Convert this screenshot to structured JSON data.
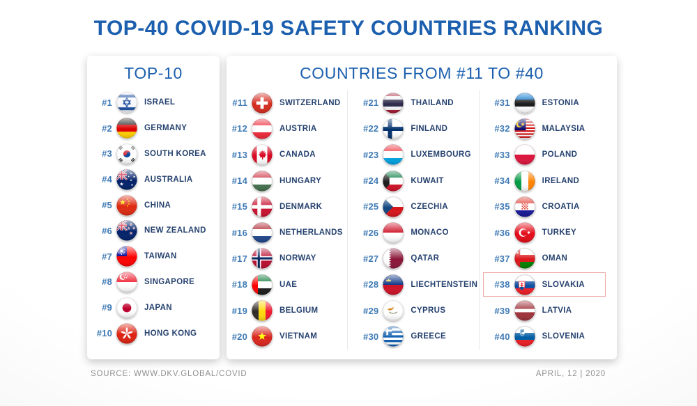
{
  "title": "TOP-40 COVID-19 SAFETY COUNTRIES RANKING",
  "panels": {
    "top10": {
      "heading": "TOP-10",
      "items": [
        {
          "rank": "#1",
          "country": "ISRAEL",
          "flag_icon": "israel-flag-icon"
        },
        {
          "rank": "#2",
          "country": "GERMANY",
          "flag_icon": "germany-flag-icon"
        },
        {
          "rank": "#3",
          "country": "SOUTH KOREA",
          "flag_icon": "south-korea-flag-icon"
        },
        {
          "rank": "#4",
          "country": "AUSTRALIA",
          "flag_icon": "australia-flag-icon"
        },
        {
          "rank": "#5",
          "country": "CHINA",
          "flag_icon": "china-flag-icon"
        },
        {
          "rank": "#6",
          "country": "NEW ZEALAND",
          "flag_icon": "new-zealand-flag-icon"
        },
        {
          "rank": "#7",
          "country": "TAIWAN",
          "flag_icon": "taiwan-flag-icon"
        },
        {
          "rank": "#8",
          "country": "SINGAPORE",
          "flag_icon": "singapore-flag-icon"
        },
        {
          "rank": "#9",
          "country": "JAPAN",
          "flag_icon": "japan-flag-icon"
        },
        {
          "rank": "#10",
          "country": "HONG KONG",
          "flag_icon": "hong-kong-flag-icon"
        }
      ]
    },
    "rest": {
      "heading": "COUNTRIES FROM #11 TO #40",
      "highlighted_rank": "#38",
      "columns": [
        [
          {
            "rank": "#11",
            "country": "SWITZERLAND",
            "flag_icon": "switzerland-flag-icon"
          },
          {
            "rank": "#12",
            "country": "AUSTRIA",
            "flag_icon": "austria-flag-icon"
          },
          {
            "rank": "#13",
            "country": "CANADA",
            "flag_icon": "canada-flag-icon"
          },
          {
            "rank": "#14",
            "country": "HUNGARY",
            "flag_icon": "hungary-flag-icon"
          },
          {
            "rank": "#15",
            "country": "DENMARK",
            "flag_icon": "denmark-flag-icon"
          },
          {
            "rank": "#16",
            "country": "NETHERLANDS",
            "flag_icon": "netherlands-flag-icon"
          },
          {
            "rank": "#17",
            "country": "NORWAY",
            "flag_icon": "norway-flag-icon"
          },
          {
            "rank": "#18",
            "country": "UAE",
            "flag_icon": "uae-flag-icon"
          },
          {
            "rank": "#19",
            "country": "BELGIUM",
            "flag_icon": "belgium-flag-icon"
          },
          {
            "rank": "#20",
            "country": "VIETNAM",
            "flag_icon": "vietnam-flag-icon"
          }
        ],
        [
          {
            "rank": "#21",
            "country": "THAILAND",
            "flag_icon": "thailand-flag-icon"
          },
          {
            "rank": "#22",
            "country": "FINLAND",
            "flag_icon": "finland-flag-icon"
          },
          {
            "rank": "#23",
            "country": "LUXEMBOURG",
            "flag_icon": "luxembourg-flag-icon"
          },
          {
            "rank": "#24",
            "country": "KUWAIT",
            "flag_icon": "kuwait-flag-icon"
          },
          {
            "rank": "#25",
            "country": "CZECHIA",
            "flag_icon": "czechia-flag-icon"
          },
          {
            "rank": "#26",
            "country": "MONACO",
            "flag_icon": "monaco-flag-icon"
          },
          {
            "rank": "#27",
            "country": "QATAR",
            "flag_icon": "qatar-flag-icon"
          },
          {
            "rank": "#28",
            "country": "LIECHTENSTEIN",
            "flag_icon": "liechtenstein-flag-icon"
          },
          {
            "rank": "#29",
            "country": "CYPRUS",
            "flag_icon": "cyprus-flag-icon"
          },
          {
            "rank": "#30",
            "country": "GREECE",
            "flag_icon": "greece-flag-icon"
          }
        ],
        [
          {
            "rank": "#31",
            "country": "ESTONIA",
            "flag_icon": "estonia-flag-icon"
          },
          {
            "rank": "#32",
            "country": "MALAYSIA",
            "flag_icon": "malaysia-flag-icon"
          },
          {
            "rank": "#33",
            "country": "POLAND",
            "flag_icon": "poland-flag-icon"
          },
          {
            "rank": "#34",
            "country": "IRELAND",
            "flag_icon": "ireland-flag-icon"
          },
          {
            "rank": "#35",
            "country": "CROATIA",
            "flag_icon": "croatia-flag-icon"
          },
          {
            "rank": "#36",
            "country": "TURKEY",
            "flag_icon": "turkey-flag-icon"
          },
          {
            "rank": "#37",
            "country": "OMAN",
            "flag_icon": "oman-flag-icon"
          },
          {
            "rank": "#38",
            "country": "SLOVAKIA",
            "flag_icon": "slovakia-flag-icon"
          },
          {
            "rank": "#39",
            "country": "LATVIA",
            "flag_icon": "latvia-flag-icon"
          },
          {
            "rank": "#40",
            "country": "SLOVENIA",
            "flag_icon": "slovenia-flag-icon"
          }
        ]
      ]
    }
  },
  "footer": {
    "source": "SOURCE: WWW.DKV.GLOBAL/COVID",
    "date": "APRIL, 12 | 2020"
  },
  "colors": {
    "title_blue": "#1b5fae",
    "rank_blue": "#3f7ab5",
    "label_navy": "#26426f",
    "highlight_border": "#eda9a4",
    "divider": "#e8e8e8",
    "footer_gray": "#8f8f8f"
  },
  "chart_data": {
    "type": "table",
    "title": "TOP-40 COVID-19 SAFETY COUNTRIES RANKING",
    "columns": [
      "rank",
      "country"
    ],
    "rows": [
      [
        1,
        "Israel"
      ],
      [
        2,
        "Germany"
      ],
      [
        3,
        "South Korea"
      ],
      [
        4,
        "Australia"
      ],
      [
        5,
        "China"
      ],
      [
        6,
        "New Zealand"
      ],
      [
        7,
        "Taiwan"
      ],
      [
        8,
        "Singapore"
      ],
      [
        9,
        "Japan"
      ],
      [
        10,
        "Hong Kong"
      ],
      [
        11,
        "Switzerland"
      ],
      [
        12,
        "Austria"
      ],
      [
        13,
        "Canada"
      ],
      [
        14,
        "Hungary"
      ],
      [
        15,
        "Denmark"
      ],
      [
        16,
        "Netherlands"
      ],
      [
        17,
        "Norway"
      ],
      [
        18,
        "UAE"
      ],
      [
        19,
        "Belgium"
      ],
      [
        20,
        "Vietnam"
      ],
      [
        21,
        "Thailand"
      ],
      [
        22,
        "Finland"
      ],
      [
        23,
        "Luxembourg"
      ],
      [
        24,
        "Kuwait"
      ],
      [
        25,
        "Czechia"
      ],
      [
        26,
        "Monaco"
      ],
      [
        27,
        "Qatar"
      ],
      [
        28,
        "Liechtenstein"
      ],
      [
        29,
        "Cyprus"
      ],
      [
        30,
        "Greece"
      ],
      [
        31,
        "Estonia"
      ],
      [
        32,
        "Malaysia"
      ],
      [
        33,
        "Poland"
      ],
      [
        34,
        "Ireland"
      ],
      [
        35,
        "Croatia"
      ],
      [
        36,
        "Turkey"
      ],
      [
        37,
        "Oman"
      ],
      [
        38,
        "Slovakia"
      ],
      [
        39,
        "Latvia"
      ],
      [
        40,
        "Slovenia"
      ]
    ],
    "highlighted_row": [
      38,
      "Slovakia"
    ]
  }
}
